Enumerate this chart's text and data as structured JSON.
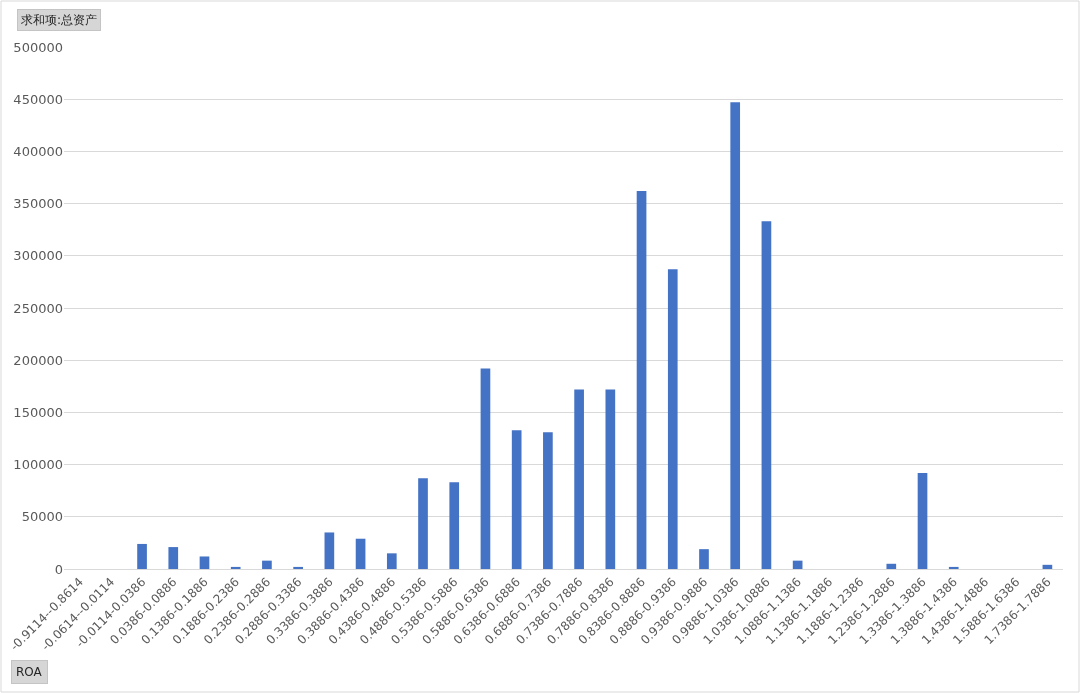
{
  "chart_data": {
    "type": "bar",
    "ylabel": "求和项:总资产",
    "xlabel": "ROA",
    "categories": [
      "-0.9114--0.8614",
      "-0.0614--0.0114",
      "-0.0114-0.0386",
      "0.0386-0.0886",
      "0.1386-0.1886",
      "0.1886-0.2386",
      "0.2386-0.2886",
      "0.2886-0.3386",
      "0.3386-0.3886",
      "0.3886-0.4386",
      "0.4386-0.4886",
      "0.4886-0.5386",
      "0.5386-0.5886",
      "0.5886-0.6386",
      "0.6386-0.6886",
      "0.6886-0.7386",
      "0.7386-0.7886",
      "0.7886-0.8386",
      "0.8386-0.8886",
      "0.8886-0.9386",
      "0.9386-0.9886",
      "0.9886-1.0386",
      "1.0386-1.0886",
      "1.0886-1.1386",
      "1.1386-1.1886",
      "1.1886-1.2386",
      "1.2386-1.2886",
      "1.3386-1.3886",
      "1.3886-1.4386",
      "1.4386-1.4886",
      "1.5886-1.6386",
      "1.7386-1.7886"
    ],
    "values": [
      0,
      0,
      24000,
      21000,
      12000,
      2000,
      8000,
      2000,
      35000,
      29000,
      15000,
      87000,
      83000,
      192000,
      133000,
      131000,
      172000,
      172000,
      362000,
      287000,
      19000,
      447000,
      333000,
      8000,
      0,
      0,
      5000,
      92000,
      2000,
      0,
      0,
      4000
    ],
    "color": "#4472c4",
    "ylim": [
      0,
      500000
    ],
    "yticks": [
      0,
      50000,
      100000,
      150000,
      200000,
      250000,
      300000,
      350000,
      400000,
      450000,
      500000
    ],
    "grid": "y"
  }
}
